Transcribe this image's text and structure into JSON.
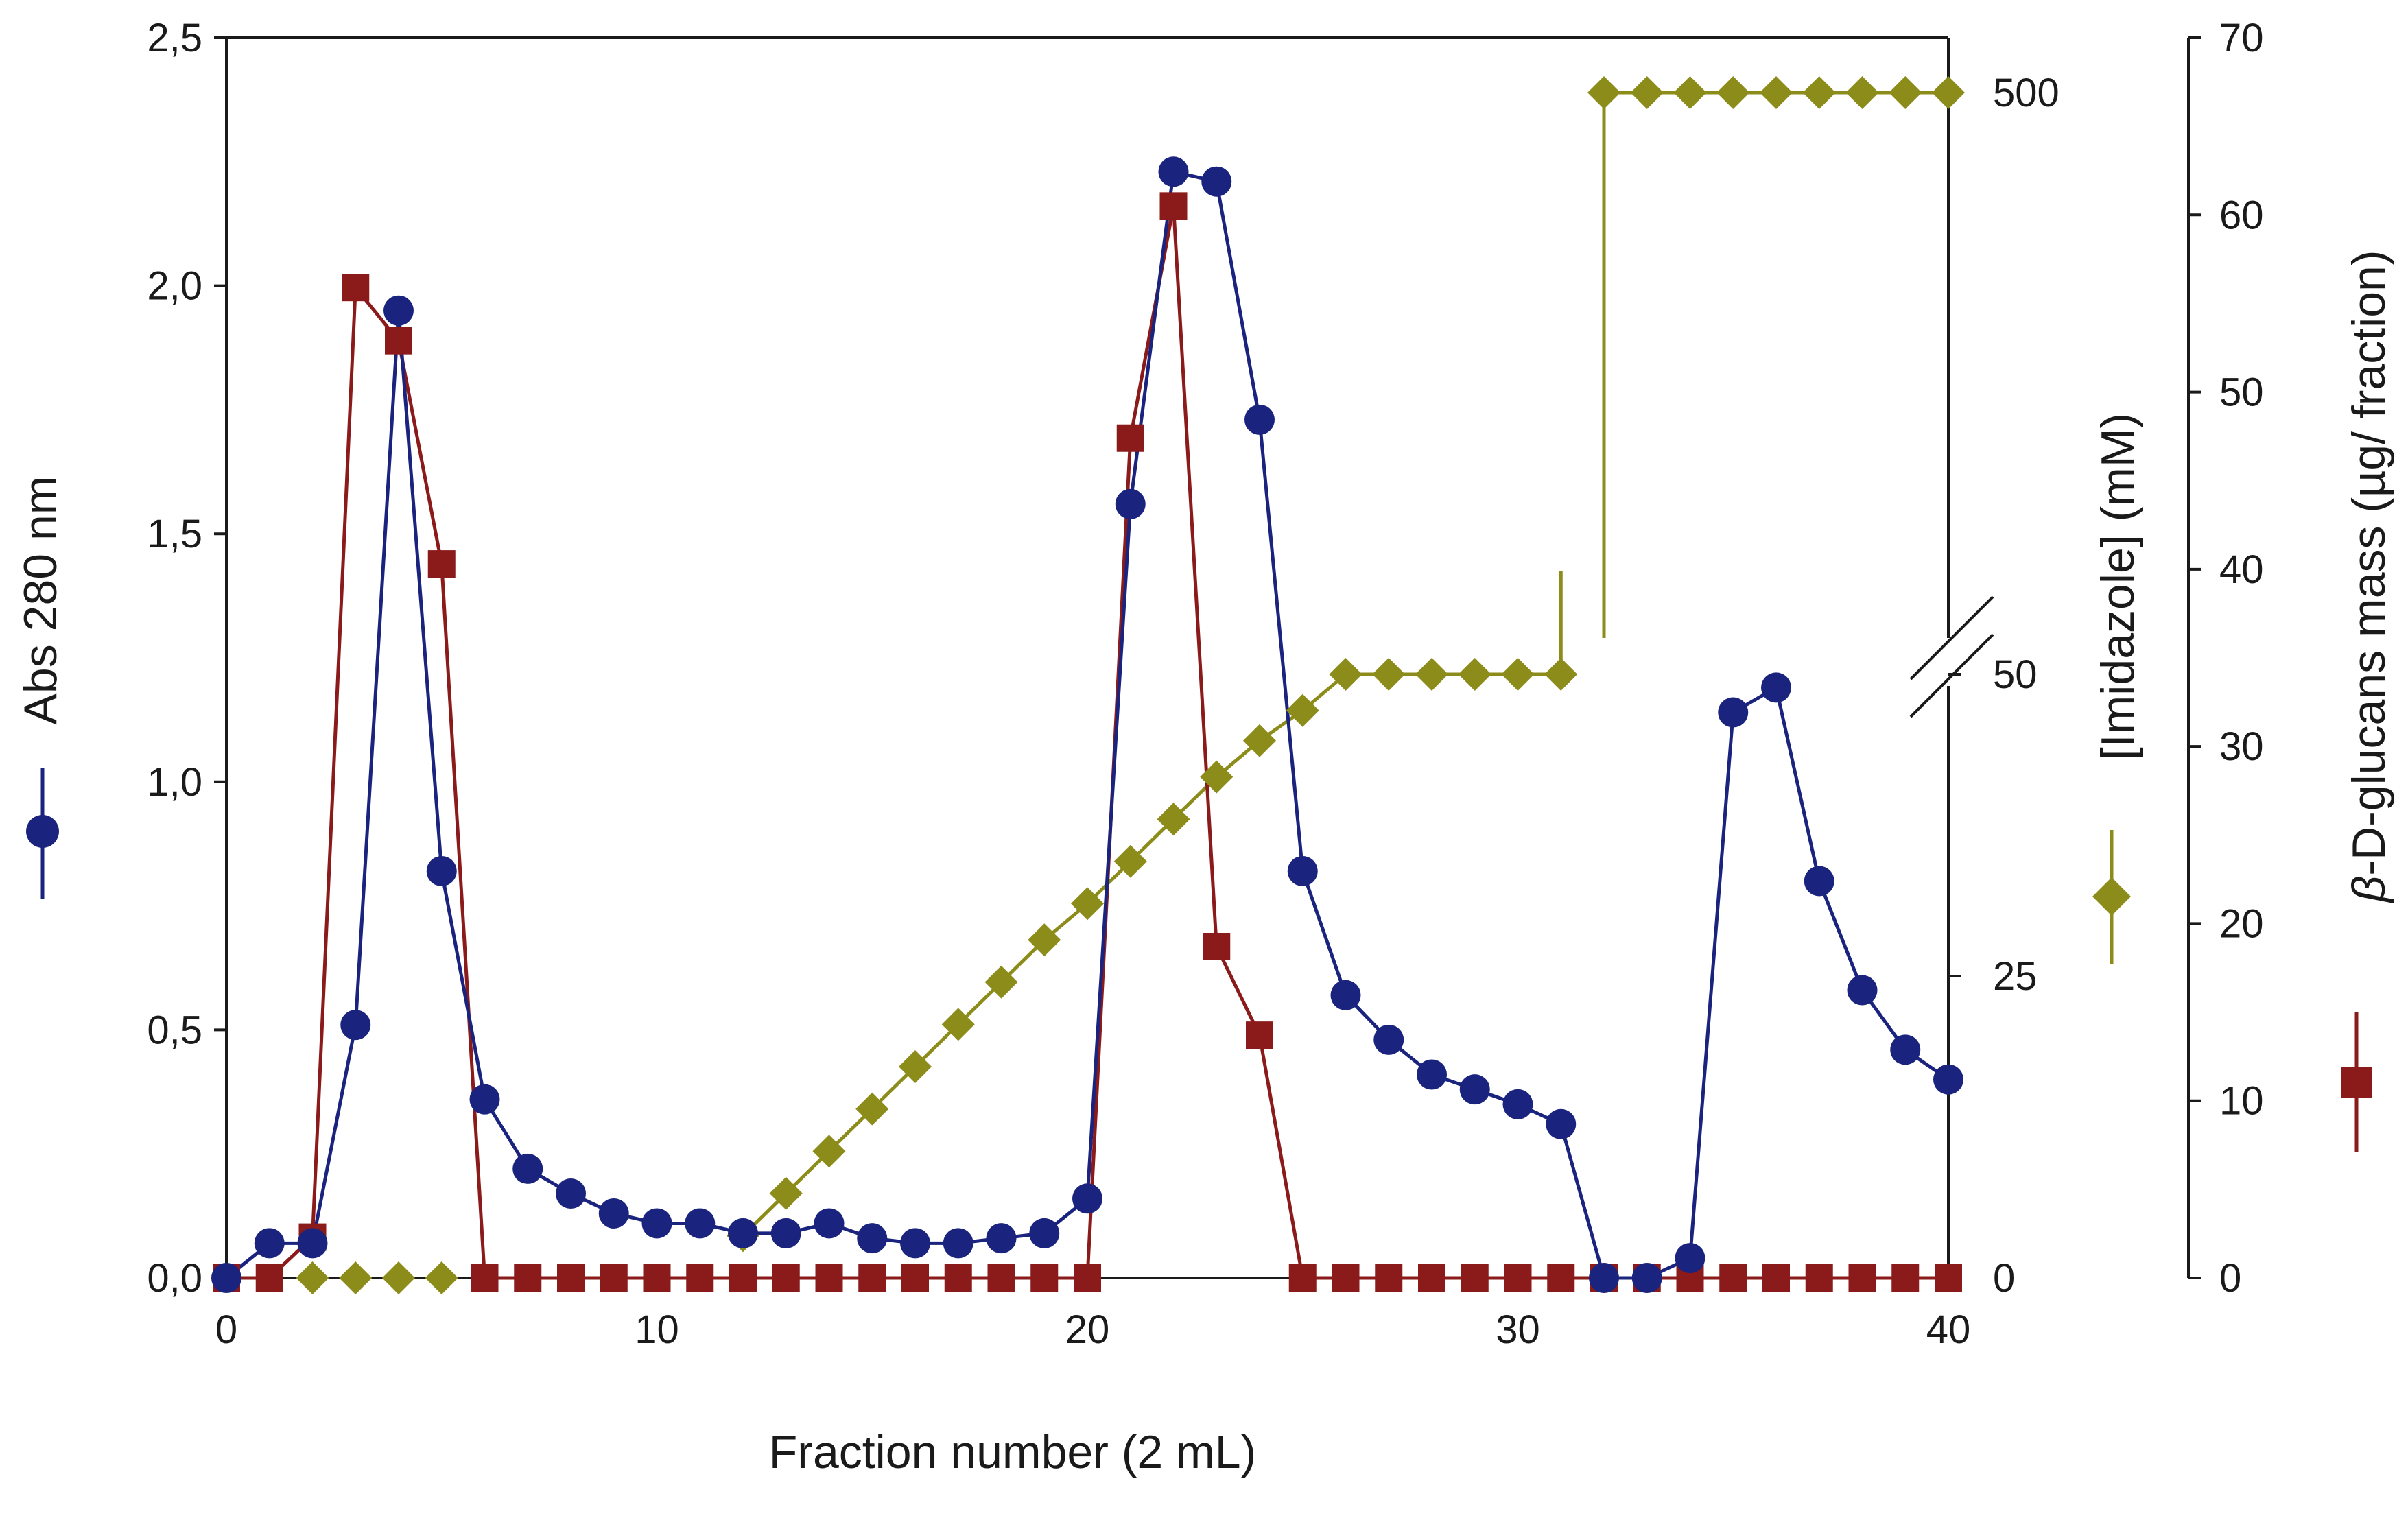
{
  "chart_data": {
    "type": "line",
    "xlabel": "Fraction number (2 mL)",
    "x_ticks": [
      "0",
      "10",
      "20",
      "30",
      "40"
    ],
    "xlim": [
      0,
      40
    ],
    "y_left": {
      "label": "Abs 280 nm",
      "ylim": [
        0,
        2.5
      ],
      "ticks": [
        "0,0",
        "0,5",
        "1,0",
        "1,5",
        "2,0",
        "2,5"
      ]
    },
    "y_mid": {
      "label": "[Imidazole] (mM)",
      "ticks": [
        "0",
        "25",
        "50",
        "500"
      ],
      "broken_axis": true
    },
    "y_right": {
      "label_prefix": "β",
      "label": "-D-glucans mass (µg/ fraction)",
      "ylim": [
        0,
        70
      ],
      "ticks": [
        "0",
        "10",
        "20",
        "30",
        "40",
        "50",
        "60",
        "70"
      ]
    },
    "series": [
      {
        "key": "abs280",
        "axis": "left",
        "color": "#1a237e",
        "marker": "circle",
        "x": [
          0,
          1,
          2,
          3,
          4,
          5,
          6,
          7,
          8,
          9,
          10,
          11,
          12,
          13,
          14,
          15,
          16,
          17,
          18,
          19,
          20,
          21,
          22,
          23,
          24,
          25,
          26,
          27,
          28,
          29,
          30,
          31,
          32,
          33,
          34,
          35,
          36,
          37,
          38,
          39,
          40
        ],
        "values": [
          0.0,
          0.07,
          0.07,
          0.51,
          1.95,
          0.82,
          0.36,
          0.22,
          0.17,
          0.13,
          0.11,
          0.11,
          0.09,
          0.09,
          0.11,
          0.08,
          0.07,
          0.07,
          0.08,
          0.09,
          0.16,
          1.56,
          2.23,
          2.21,
          1.73,
          0.82,
          0.57,
          0.48,
          0.41,
          0.38,
          0.35,
          0.31,
          0.0,
          0.0,
          0.04,
          1.14,
          1.19,
          0.8,
          0.58,
          0.46,
          0.4
        ]
      },
      {
        "key": "glucans",
        "axis": "right",
        "color": "#8b1a1a",
        "marker": "square",
        "x": [
          0,
          1,
          2,
          3,
          4,
          5,
          6,
          7,
          8,
          9,
          10,
          11,
          12,
          13,
          14,
          15,
          16,
          17,
          18,
          19,
          20,
          21,
          22,
          23,
          24,
          25,
          26,
          27,
          28,
          29,
          30,
          31,
          32,
          33,
          34,
          35,
          36,
          37,
          38,
          39,
          40
        ],
        "values": [
          0,
          0,
          2.3,
          55.9,
          52.9,
          40.3,
          0,
          0,
          0,
          0,
          0,
          0,
          0,
          0,
          0,
          0,
          0,
          0,
          0,
          0,
          0,
          47.4,
          60.5,
          18.7,
          13.7,
          0,
          0,
          0,
          0,
          0,
          0,
          0,
          0,
          0,
          0,
          0,
          0,
          0,
          0,
          0,
          0
        ]
      },
      {
        "key": "imidazole",
        "axis": "mid",
        "color": "#8c8c1a",
        "marker": "diamond",
        "x": [
          2,
          3,
          4,
          5,
          12,
          13,
          14,
          15,
          16,
          17,
          18,
          19,
          20,
          21,
          22,
          23,
          24,
          25,
          26,
          27,
          28,
          29,
          30,
          31,
          32,
          33,
          34,
          35,
          36,
          37,
          38,
          39,
          40
        ],
        "values": [
          0,
          0,
          0,
          0,
          3.5,
          7,
          10.5,
          14,
          17.5,
          21,
          24.5,
          28,
          31,
          34.5,
          38,
          41.5,
          44.5,
          47,
          50,
          50,
          50,
          50,
          50,
          50,
          500,
          500,
          500,
          500,
          500,
          500,
          500,
          500,
          500
        ]
      }
    ]
  }
}
